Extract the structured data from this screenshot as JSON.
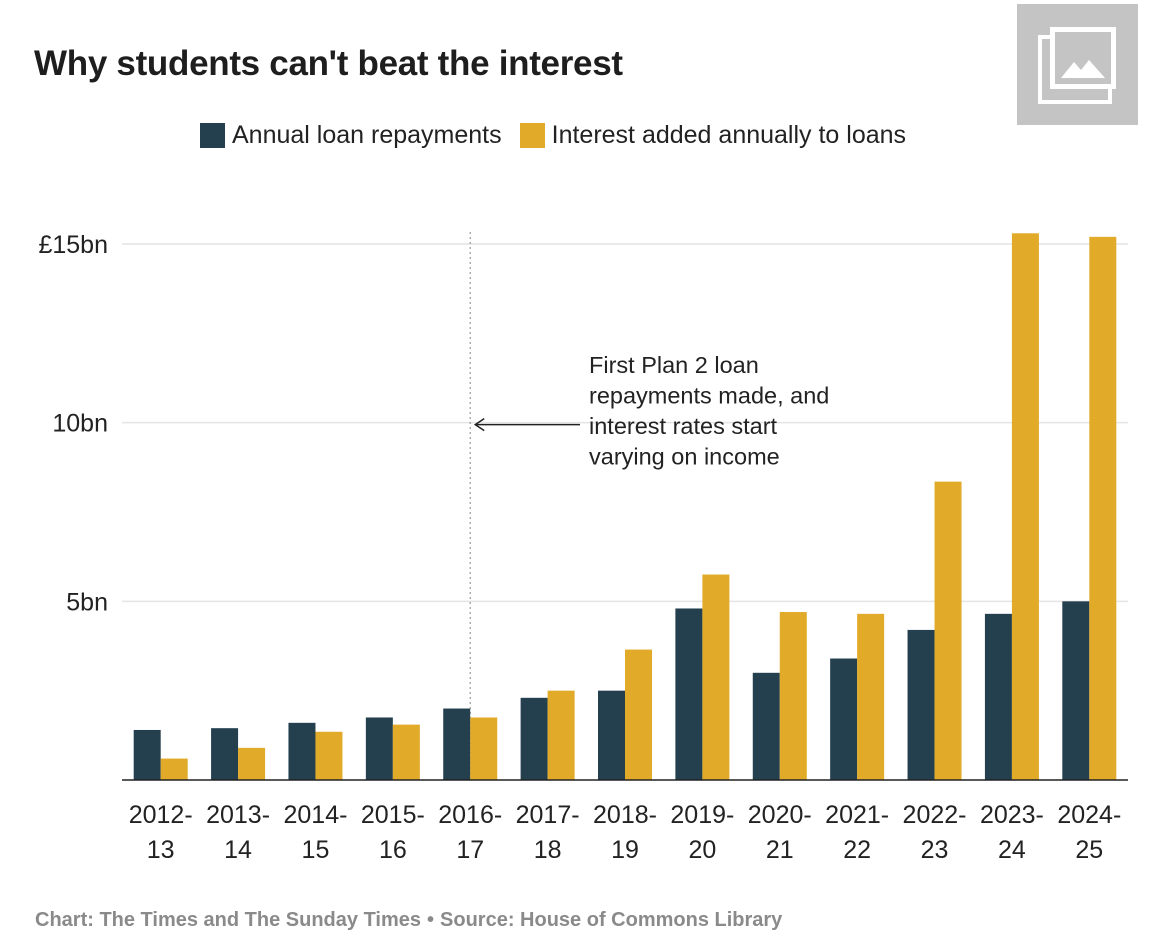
{
  "title": "Why students can't beat the interest",
  "image_badge": {
    "icon": "gallery-icon"
  },
  "legend": [
    {
      "label": "Annual loan repayments",
      "color": "#243f4e"
    },
    {
      "label": "Interest added annually to loans",
      "color": "#e1aa28"
    }
  ],
  "footer": {
    "credit": "Chart: The Times and The Sunday Times",
    "separator": "•",
    "source": "Source: House of Commons Library"
  },
  "chart_data": {
    "type": "bar",
    "title": "Why students can't beat the interest",
    "xlabel": "",
    "ylabel": "",
    "ylim": [
      0,
      15
    ],
    "yticks": [
      {
        "value": 5,
        "label": "5bn"
      },
      {
        "value": 10,
        "label": "10bn"
      },
      {
        "value": 15,
        "label": "£15bn"
      }
    ],
    "grid": true,
    "legend_position": "top-center",
    "categories": [
      [
        "2012-",
        "13"
      ],
      [
        "2013-",
        "14"
      ],
      [
        "2014-",
        "15"
      ],
      [
        "2015-",
        "16"
      ],
      [
        "2016-",
        "17"
      ],
      [
        "2017-",
        "18"
      ],
      [
        "2018-",
        "19"
      ],
      [
        "2019-",
        "20"
      ],
      [
        "2020-",
        "21"
      ],
      [
        "2021-",
        "22"
      ],
      [
        "2022-",
        "23"
      ],
      [
        "2023-",
        "24"
      ],
      [
        "2024-",
        "25"
      ]
    ],
    "series": [
      {
        "name": "Annual loan repayments",
        "color": "#243f4e",
        "values": [
          1.4,
          1.45,
          1.6,
          1.75,
          2.0,
          2.3,
          2.5,
          4.8,
          3.0,
          3.4,
          4.2,
          4.65,
          5.0
        ]
      },
      {
        "name": "Interest added annually to loans",
        "color": "#e1aa28",
        "values": [
          0.6,
          0.9,
          1.35,
          1.55,
          1.75,
          2.5,
          3.65,
          5.75,
          4.7,
          4.65,
          8.35,
          15.3,
          15.2
        ]
      }
    ],
    "annotation": {
      "category_index": 4,
      "text": [
        "First Plan 2 loan",
        "repayments made, and",
        "interest rates start",
        "varying on income"
      ]
    }
  }
}
